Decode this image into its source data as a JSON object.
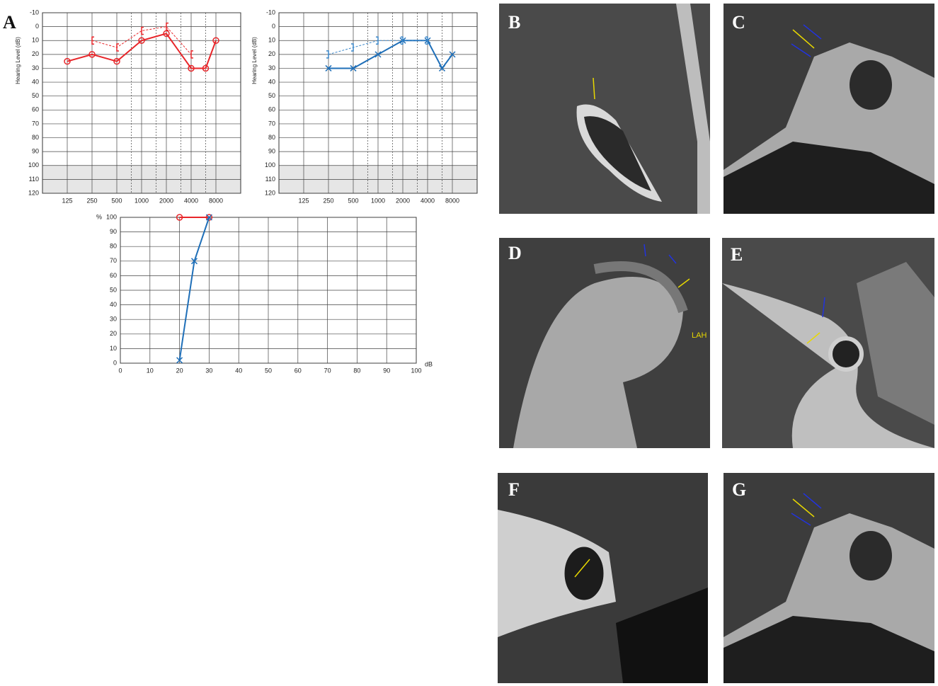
{
  "chart_data": [
    {
      "type": "line",
      "ylabel": "Hearing Level (dB)",
      "xscale": "log",
      "xlim": [
        62.5,
        16000
      ],
      "xticks": [
        125,
        250,
        500,
        1000,
        2000,
        4000,
        8000
      ],
      "xminor": [
        750,
        1500,
        3000,
        6000
      ],
      "ylim": [
        120,
        -10
      ],
      "yticks": [
        -10,
        0,
        10,
        20,
        30,
        40,
        50,
        60,
        70,
        80,
        90,
        100,
        110,
        120
      ],
      "shaded": [
        100,
        120
      ],
      "grid": true,
      "series": [
        {
          "x": [
            125,
            250,
            500,
            1000,
            2000,
            4000,
            6000,
            8000
          ],
          "values": [
            25,
            20,
            25,
            10,
            5,
            30,
            30,
            10
          ],
          "color": "#e8262a",
          "marker": "circle",
          "linestyle": "solid"
        },
        {
          "x": [
            250,
            500,
            1000,
            2000,
            4000
          ],
          "values": [
            10,
            15,
            3,
            0,
            20
          ],
          "color": "#e8262a",
          "marker": "bracket-left",
          "linestyle": "dashed"
        }
      ]
    },
    {
      "type": "line",
      "ylabel": "Hearing Level (dB)",
      "xscale": "log",
      "xlim": [
        62.5,
        16000
      ],
      "xticks": [
        125,
        250,
        500,
        1000,
        2000,
        4000,
        8000
      ],
      "xminor": [
        750,
        1500,
        3000,
        6000
      ],
      "ylim": [
        120,
        -10
      ],
      "yticks": [
        -10,
        0,
        10,
        20,
        30,
        40,
        50,
        60,
        70,
        80,
        90,
        100,
        110,
        120
      ],
      "shaded": [
        100,
        120
      ],
      "grid": true,
      "series": [
        {
          "x": [
            250,
            500,
            1000,
            2000,
            4000,
            6000,
            8000
          ],
          "values": [
            30,
            30,
            20,
            10,
            10,
            30,
            20
          ],
          "color": "#1f6fb8",
          "marker": "x",
          "linestyle": "solid"
        },
        {
          "x": [
            250,
            500,
            1000,
            2000,
            4000
          ],
          "values": [
            20,
            15,
            10,
            10,
            10
          ],
          "color": "#3a86c8",
          "marker": "bracket-right",
          "linestyle": "dashed"
        }
      ]
    },
    {
      "type": "line",
      "ylabel": "%",
      "xlabel": "dB",
      "xscale": "linear",
      "xlim": [
        0,
        100
      ],
      "xticks": [
        0,
        10,
        20,
        30,
        40,
        50,
        60,
        70,
        80,
        90,
        100
      ],
      "ylim": [
        0,
        100
      ],
      "yticks": [
        0,
        10,
        20,
        30,
        40,
        50,
        60,
        70,
        80,
        90,
        100
      ],
      "grid": true,
      "series": [
        {
          "x": [
            20,
            30
          ],
          "values": [
            100,
            100
          ],
          "color": "#e8262a",
          "marker": "circle",
          "linestyle": "solid"
        },
        {
          "x": [
            20,
            25,
            30
          ],
          "values": [
            2,
            70,
            100
          ],
          "color": "#1f6fb8",
          "marker": "x",
          "linestyle": "solid"
        }
      ]
    }
  ],
  "panel_labels": [
    "A",
    "B",
    "C",
    "D",
    "E",
    "F",
    "G"
  ],
  "annotation": "LAH"
}
